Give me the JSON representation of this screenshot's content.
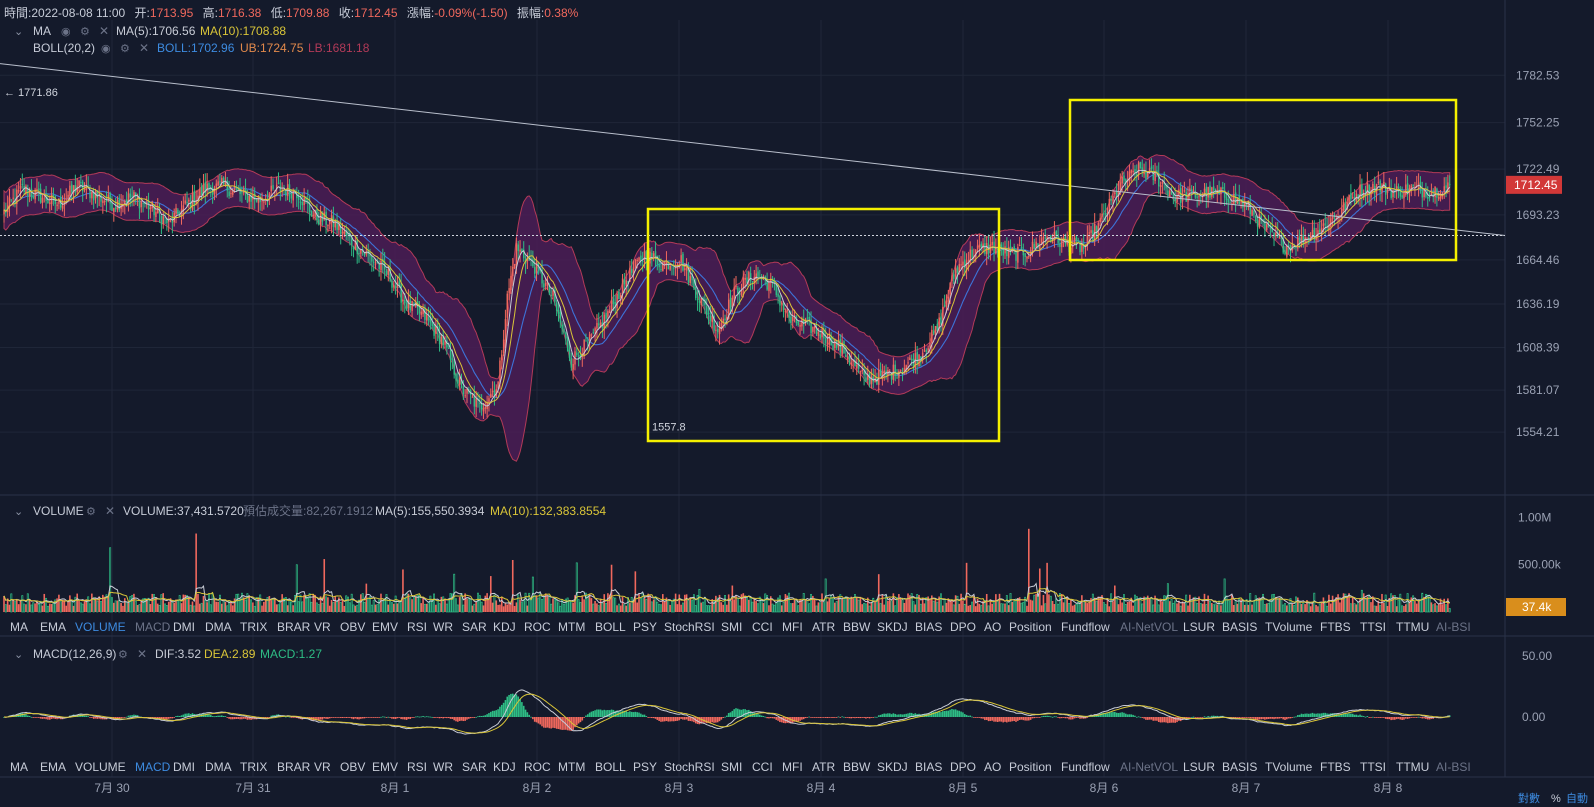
{
  "header": {
    "time_label": "時間:",
    "time": "2022-08-08 11:00",
    "open_label": "开:",
    "open": "1713.95",
    "high_label": "高:",
    "high": "1716.38",
    "low_label": "低:",
    "low": "1709.88",
    "close_label": "收:",
    "close": "1712.45",
    "change_label": "漲幅:",
    "change": "-0.09%(-1.50)",
    "amp_label": "振幅:",
    "amp": "0.38%"
  },
  "ma_legend": {
    "name": "MA",
    "ma5": "MA(5):1706.56",
    "ma10": "MA(10):1708.88"
  },
  "boll_legend": {
    "name": "BOLL(20,2)",
    "boll": "BOLL:1702.96",
    "ub": "UB:1724.75",
    "lb": "LB:1681.18"
  },
  "volume_legend": {
    "name": "VOLUME",
    "volume": "VOLUME:37,431.5720",
    "est": "預估成交量:82,267.1912",
    "ma5": "MA(5):155,550.3934",
    "ma10": "MA(10):132,383.8554"
  },
  "macd_legend": {
    "name": "MACD(12,26,9)",
    "dif": "DIF:3.52",
    "dea": "DEA:2.89",
    "macd": "MACD:1.27"
  },
  "indicators_top": [
    "MA",
    "EMA",
    "VOLUME",
    "MACD",
    "DMI",
    "DMA",
    "TRIX",
    "BRAR",
    "VR",
    "OBV",
    "EMV",
    "RSI",
    "WR",
    "SAR",
    "KDJ",
    "ROC",
    "MTM",
    "BOLL",
    "PSY",
    "StochRSI",
    "SMI",
    "CCI",
    "MFI",
    "ATR",
    "BBW",
    "SKDJ",
    "BIAS",
    "DPO",
    "AO",
    "Position",
    "Fundflow",
    "AI-NetVOL",
    "LSUR",
    "BASIS",
    "TVolume",
    "FTBS",
    "TTSI",
    "TTMU",
    "AI-BSI"
  ],
  "indicators_bottom": [
    "MA",
    "EMA",
    "VOLUME",
    "MACD",
    "DMI",
    "DMA",
    "TRIX",
    "BRAR",
    "VR",
    "OBV",
    "EMV",
    "RSI",
    "WR",
    "SAR",
    "KDJ",
    "ROC",
    "MTM",
    "BOLL",
    "PSY",
    "StochRSI",
    "SMI",
    "CCI",
    "MFI",
    "ATR",
    "BBW",
    "SKDJ",
    "BIAS",
    "DPO",
    "AO",
    "Position",
    "Fundflow",
    "AI-NetVOL",
    "LSUR",
    "BASIS",
    "TVolume",
    "FTBS",
    "TTSI",
    "TTMU",
    "AI-BSI"
  ],
  "active_top": "VOLUME",
  "active_bottom": "MACD",
  "dim_indicators": [
    "MACD",
    "AI-NetVOL",
    "AI-BSI"
  ],
  "footer": {
    "log_label": "對數",
    "pct_label": "%",
    "auto_label": "自動"
  },
  "colors": {
    "up": "#f0685d",
    "down": "#2ebd85",
    "ma5": "#c8ccd6",
    "ma10": "#d9c538",
    "boll": "#3d73d8",
    "band_fill": "#4b1d56",
    "band_edge": "#b23a58",
    "box": "#f5f000",
    "price_tag": "#d23838",
    "vol_tag": "#d98e1c"
  },
  "chart_data": [
    {
      "type": "candlestick",
      "y_ticks": [
        1782.53,
        1752.25,
        1722.49,
        1693.23,
        1664.46,
        1636.19,
        1608.39,
        1581.07,
        1554.21
      ],
      "ylim": [
        1530,
        1800
      ],
      "x_ticks": [
        "7月 30",
        "7月 31",
        "8月 1",
        "8月 2",
        "8月 3",
        "8月 4",
        "8月 5",
        "8月 6",
        "8月 7",
        "8月 8"
      ],
      "last_price": 1712.45,
      "last_price_label": "1712.45",
      "ref_price": 1680,
      "high_marker": {
        "label": "← 1771.86",
        "value": 1771.86
      },
      "low_marker": {
        "label": "1557.8",
        "value": 1557.8
      },
      "trendline": {
        "from_value": 1790,
        "to_value": 1680
      },
      "anchors": [
        [
          0,
          1695
        ],
        [
          10,
          1710
        ],
        [
          20,
          1705
        ],
        [
          30,
          1700
        ],
        [
          40,
          1712
        ],
        [
          50,
          1706
        ],
        [
          60,
          1700
        ],
        [
          70,
          1705
        ],
        [
          80,
          1698
        ],
        [
          90,
          1688
        ],
        [
          100,
          1700
        ],
        [
          110,
          1710
        ],
        [
          120,
          1712
        ],
        [
          130,
          1706
        ],
        [
          140,
          1703
        ],
        [
          150,
          1710
        ],
        [
          160,
          1708
        ],
        [
          170,
          1692
        ],
        [
          180,
          1688
        ],
        [
          190,
          1676
        ],
        [
          200,
          1666
        ],
        [
          210,
          1655
        ],
        [
          220,
          1636
        ],
        [
          230,
          1628
        ],
        [
          240,
          1612
        ],
        [
          250,
          1582
        ],
        [
          260,
          1570
        ],
        [
          270,
          1585
        ],
        [
          275,
          1640
        ],
        [
          280,
          1672
        ],
        [
          290,
          1660
        ],
        [
          300,
          1640
        ],
        [
          310,
          1600
        ],
        [
          320,
          1612
        ],
        [
          330,
          1630
        ],
        [
          340,
          1652
        ],
        [
          350,
          1668
        ],
        [
          360,
          1662
        ],
        [
          370,
          1664
        ],
        [
          380,
          1640
        ],
        [
          390,
          1620
        ],
        [
          400,
          1645
        ],
        [
          410,
          1655
        ],
        [
          420,
          1648
        ],
        [
          430,
          1625
        ],
        [
          440,
          1622
        ],
        [
          450,
          1615
        ],
        [
          460,
          1605
        ],
        [
          470,
          1588
        ],
        [
          480,
          1590
        ],
        [
          490,
          1595
        ],
        [
          500,
          1603
        ],
        [
          510,
          1620
        ],
        [
          520,
          1658
        ],
        [
          530,
          1670
        ],
        [
          540,
          1673
        ],
        [
          550,
          1668
        ],
        [
          560,
          1670
        ],
        [
          570,
          1680
        ],
        [
          580,
          1675
        ],
        [
          590,
          1672
        ],
        [
          600,
          1690
        ],
        [
          610,
          1712
        ],
        [
          620,
          1722
        ],
        [
          630,
          1717
        ],
        [
          640,
          1705
        ],
        [
          650,
          1706
        ],
        [
          660,
          1707
        ],
        [
          670,
          1705
        ],
        [
          680,
          1698
        ],
        [
          690,
          1683
        ],
        [
          700,
          1673
        ],
        [
          710,
          1678
        ],
        [
          720,
          1685
        ],
        [
          730,
          1695
        ],
        [
          740,
          1708
        ],
        [
          750,
          1712
        ],
        [
          760,
          1708
        ],
        [
          770,
          1710
        ],
        [
          780,
          1708
        ],
        [
          790,
          1712
        ]
      ]
    },
    {
      "type": "bar",
      "title": "VOLUME",
      "y_ticks": [
        "1.00M",
        "500.00k"
      ],
      "y_tick_values": [
        1000000,
        500000
      ],
      "ylim": [
        0,
        1100000
      ],
      "last_label": "37.4k",
      "spikes": [
        [
          58,
          680000
        ],
        [
          105,
          830000
        ],
        [
          160,
          500000
        ],
        [
          175,
          560000
        ],
        [
          198,
          300000
        ],
        [
          218,
          450000
        ],
        [
          246,
          400000
        ],
        [
          266,
          380000
        ],
        [
          278,
          550000
        ],
        [
          289,
          370000
        ],
        [
          313,
          520000
        ],
        [
          332,
          500000
        ],
        [
          345,
          430000
        ],
        [
          380,
          240000
        ],
        [
          398,
          280000
        ],
        [
          449,
          350000
        ],
        [
          478,
          400000
        ],
        [
          526,
          520000
        ],
        [
          560,
          880000
        ],
        [
          566,
          460000
        ],
        [
          570,
          520000
        ],
        [
          607,
          280000
        ],
        [
          636,
          300000
        ],
        [
          667,
          350000
        ],
        [
          742,
          230000
        ],
        [
          787,
          140000
        ]
      ]
    },
    {
      "type": "bar",
      "title": "MACD",
      "y_ticks": [
        "50.00",
        "0.00"
      ],
      "y_tick_values": [
        50,
        0
      ],
      "ylim": [
        -30,
        60
      ],
      "dif": 3.52,
      "dea": 2.89,
      "macd": 1.27
    }
  ]
}
